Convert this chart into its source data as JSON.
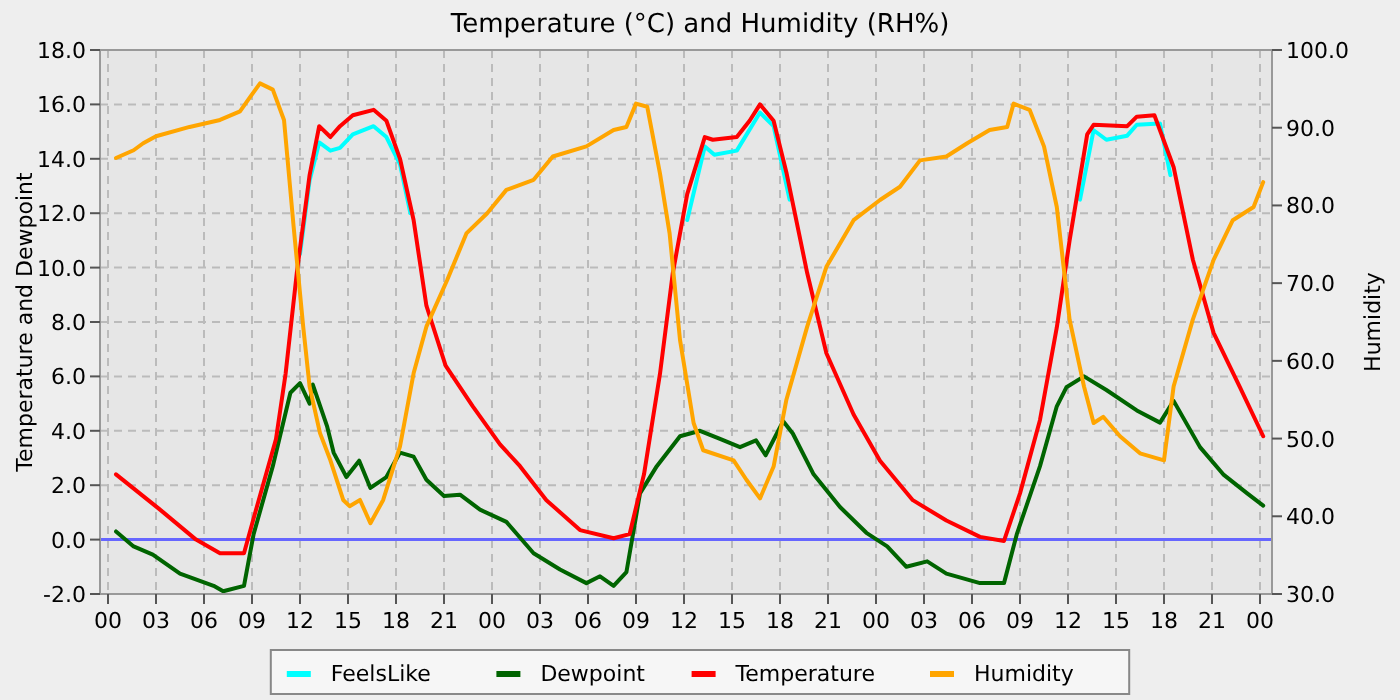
{
  "chart_data": {
    "type": "line",
    "title": "Temperature (°C) and Humidity (RH%)",
    "ylabel": "Temperature and Dewpoint",
    "y2label": "Humidity",
    "xlim": [
      -0.5,
      72.75
    ],
    "ylim": [
      -2,
      18
    ],
    "y2lim": [
      30,
      100
    ],
    "xticks": [
      {
        "value": 0,
        "label": "00"
      },
      {
        "value": 3,
        "label": "03"
      },
      {
        "value": 6,
        "label": "06"
      },
      {
        "value": 9,
        "label": "09"
      },
      {
        "value": 12,
        "label": "12"
      },
      {
        "value": 15,
        "label": "15"
      },
      {
        "value": 18,
        "label": "18"
      },
      {
        "value": 21,
        "label": "21"
      },
      {
        "value": 24,
        "label": "00"
      },
      {
        "value": 27,
        "label": "03"
      },
      {
        "value": 30,
        "label": "06"
      },
      {
        "value": 33,
        "label": "09"
      },
      {
        "value": 36,
        "label": "12"
      },
      {
        "value": 39,
        "label": "15"
      },
      {
        "value": 42,
        "label": "18"
      },
      {
        "value": 45,
        "label": "21"
      },
      {
        "value": 48,
        "label": "00"
      },
      {
        "value": 51,
        "label": "03"
      },
      {
        "value": 54,
        "label": "06"
      },
      {
        "value": 57,
        "label": "09"
      },
      {
        "value": 60,
        "label": "12"
      },
      {
        "value": 63,
        "label": "15"
      },
      {
        "value": 66,
        "label": "18"
      },
      {
        "value": 69,
        "label": "21"
      },
      {
        "value": 72,
        "label": "00"
      }
    ],
    "yticks": [
      {
        "value": -2,
        "label": "-2.0"
      },
      {
        "value": 0,
        "label": "0.0"
      },
      {
        "value": 2,
        "label": "2.0"
      },
      {
        "value": 4,
        "label": "4.0"
      },
      {
        "value": 6,
        "label": "6.0"
      },
      {
        "value": 8,
        "label": "8.0"
      },
      {
        "value": 10,
        "label": "10.0"
      },
      {
        "value": 12,
        "label": "12.0"
      },
      {
        "value": 14,
        "label": "14.0"
      },
      {
        "value": 16,
        "label": "16.0"
      },
      {
        "value": 18,
        "label": "18.0"
      }
    ],
    "y2ticks": [
      {
        "value": 30,
        "label": "30.0"
      },
      {
        "value": 40,
        "label": "40.0"
      },
      {
        "value": 50,
        "label": "50.0"
      },
      {
        "value": 60,
        "label": "60.0"
      },
      {
        "value": 70,
        "label": "70.0"
      },
      {
        "value": 80,
        "label": "80.0"
      },
      {
        "value": 90,
        "label": "90.0"
      },
      {
        "value": 100,
        "label": "100.0"
      }
    ],
    "grid": true,
    "legend": "bottom",
    "marker": "none",
    "line_style": "solid",
    "ref_lines": [
      {
        "axis": "y",
        "value": 0,
        "color": "#6666ff"
      }
    ],
    "series": [
      {
        "name": "FeelsLike",
        "color": "#00ffff",
        "x": [
          12.0,
          12.6,
          13.2,
          13.9,
          14.5,
          15.3,
          16.6,
          17.4,
          18.25,
          18.9,
          null,
          36.2,
          37.3,
          37.9,
          39.3,
          40.75,
          41.6,
          42.6,
          null,
          60.75,
          61.6,
          62.4,
          63.7,
          64.3,
          65.75,
          66.4
        ],
        "values": [
          10.5,
          13.2,
          14.6,
          14.3,
          14.4,
          14.9,
          15.2,
          14.8,
          13.8,
          12.0,
          null,
          11.75,
          14.45,
          14.15,
          14.3,
          15.7,
          15.2,
          12.5,
          null,
          12.5,
          15.05,
          14.7,
          14.85,
          15.25,
          15.3,
          13.4
        ]
      },
      {
        "name": "Dewpoint",
        "color": "#006400",
        "x": [
          0.5,
          1.6,
          2.8,
          4.5,
          6.6,
          7.2,
          8.5,
          9.1,
          10.3,
          11.4,
          12.0,
          12.6,
          12.8,
          13.7,
          14.1,
          14.9,
          15.7,
          16.4,
          17.4,
          18.25,
          19.1,
          19.9,
          21.0,
          22.0,
          23.25,
          24.9,
          26.6,
          28.25,
          29.9,
          30.75,
          31.6,
          32.4,
          33.25,
          34.3,
          35.75,
          37.0,
          38.25,
          39.5,
          40.5,
          41.1,
          42.2,
          42.8,
          44.1,
          45.75,
          47.4,
          48.7,
          49.9,
          51.2,
          52.4,
          54.5,
          56.0,
          56.8,
          58.25,
          59.3,
          59.9,
          61.0,
          62.4,
          64.3,
          65.75,
          66.6,
          68.25,
          69.7,
          71.2,
          72.2
        ],
        "values": [
          0.3,
          -0.25,
          -0.55,
          -1.25,
          -1.7,
          -1.9,
          -1.7,
          0.2,
          2.7,
          5.4,
          5.75,
          5.0,
          5.7,
          4.15,
          3.2,
          2.3,
          2.9,
          1.9,
          2.3,
          3.2,
          3.05,
          2.2,
          1.6,
          1.65,
          1.1,
          0.65,
          -0.5,
          -1.1,
          -1.6,
          -1.35,
          -1.7,
          -1.2,
          1.7,
          2.7,
          3.8,
          4.0,
          3.7,
          3.4,
          3.65,
          3.1,
          4.35,
          3.9,
          2.4,
          1.2,
          0.25,
          -0.25,
          -1.0,
          -0.8,
          -1.25,
          -1.6,
          -1.6,
          0.2,
          2.7,
          4.9,
          5.6,
          6.0,
          5.5,
          4.75,
          4.3,
          5.1,
          3.4,
          2.4,
          1.7,
          1.25
        ]
      },
      {
        "name": "Temperature",
        "color": "#ff0000",
        "x": [
          0.5,
          3.25,
          5.5,
          7.0,
          8.5,
          9.3,
          10.5,
          11.1,
          11.8,
          12.6,
          13.2,
          13.9,
          14.5,
          15.3,
          16.6,
          17.4,
          18.25,
          19.1,
          19.9,
          21.1,
          22.8,
          24.5,
          25.75,
          27.4,
          29.5,
          31.6,
          32.6,
          33.5,
          34.5,
          35.3,
          36.2,
          37.3,
          37.8,
          39.3,
          40.1,
          40.75,
          41.6,
          42.4,
          43.7,
          44.9,
          46.6,
          48.25,
          50.3,
          52.4,
          54.5,
          56.0,
          57.0,
          58.25,
          59.3,
          60.1,
          61.2,
          61.6,
          63.7,
          64.3,
          65.4,
          66.6,
          67.8,
          69.1,
          70.75,
          72.2
        ],
        "values": [
          2.4,
          1.1,
          0.0,
          -0.5,
          -0.5,
          1.2,
          3.7,
          6.1,
          9.8,
          13.4,
          15.2,
          14.8,
          15.2,
          15.6,
          15.8,
          15.4,
          14.0,
          11.75,
          8.6,
          6.4,
          4.9,
          3.5,
          2.7,
          1.45,
          0.35,
          0.05,
          0.2,
          2.4,
          6.1,
          9.8,
          12.7,
          14.8,
          14.7,
          14.8,
          15.4,
          16.0,
          15.4,
          13.5,
          9.8,
          6.85,
          4.6,
          2.9,
          1.45,
          0.7,
          0.1,
          -0.05,
          1.7,
          4.4,
          7.8,
          11.0,
          14.9,
          15.25,
          15.2,
          15.55,
          15.6,
          13.7,
          10.3,
          7.6,
          5.6,
          3.8
        ]
      },
      {
        "name": "Humidity",
        "color": "#ffa500",
        "axis": "y2",
        "x": [
          0.5,
          1.6,
          2.2,
          3.0,
          5.1,
          7.0,
          8.25,
          8.9,
          9.5,
          10.3,
          11.0,
          11.6,
          12.2,
          12.6,
          13.25,
          13.9,
          14.7,
          15.1,
          15.75,
          16.4,
          17.2,
          18.25,
          19.1,
          19.9,
          21.2,
          22.4,
          23.7,
          24.9,
          26.6,
          27.8,
          29.9,
          31.6,
          32.4,
          33.0,
          33.7,
          34.5,
          35.1,
          35.75,
          36.6,
          37.2,
          39.1,
          39.9,
          40.75,
          41.6,
          42.4,
          43.7,
          44.9,
          46.6,
          48.25,
          49.5,
          50.75,
          52.4,
          53.7,
          55.1,
          56.2,
          56.6,
          57.6,
          58.5,
          59.3,
          60.1,
          61.0,
          61.6,
          62.2,
          63.25,
          64.5,
          66.0,
          66.6,
          67.8,
          69.1,
          70.3,
          71.6,
          72.2
        ],
        "values": [
          86.1,
          87.1,
          88.0,
          88.9,
          90.1,
          91.0,
          92.1,
          94.0,
          95.7,
          94.9,
          91.0,
          77.3,
          64.4,
          56.7,
          50.7,
          47.2,
          42.1,
          41.3,
          42.1,
          39.1,
          42.1,
          49.0,
          58.4,
          64.4,
          70.4,
          76.4,
          79.0,
          82.0,
          83.3,
          86.3,
          87.6,
          89.7,
          90.1,
          93.1,
          92.7,
          84.1,
          76.4,
          62.7,
          52.0,
          48.5,
          47.2,
          44.7,
          42.3,
          46.4,
          55.0,
          64.4,
          72.1,
          78.1,
          80.7,
          82.4,
          85.8,
          86.3,
          88.0,
          89.7,
          90.1,
          93.1,
          92.3,
          87.6,
          79.8,
          65.3,
          56.7,
          52.0,
          52.8,
          50.3,
          48.1,
          47.2,
          56.7,
          65.3,
          73.0,
          78.1,
          79.8,
          83.0
        ]
      }
    ]
  }
}
